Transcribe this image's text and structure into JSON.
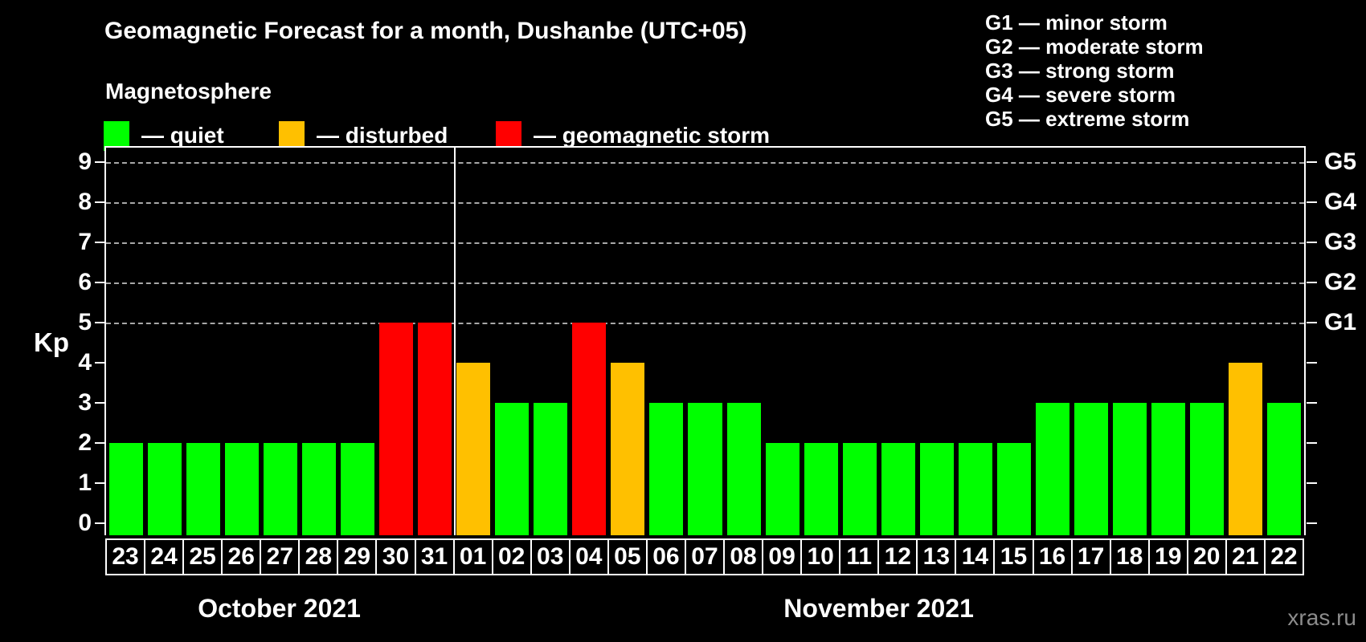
{
  "header": {
    "title": "Geomagnetic Forecast for a month, Dushanbe (UTC+05)",
    "subtitle": "Magnetosphere",
    "legend": [
      {
        "status": "quiet",
        "label": "— quiet"
      },
      {
        "status": "disturbed",
        "label": "— disturbed"
      },
      {
        "status": "storm",
        "label": "— geomagnetic storm"
      }
    ],
    "g_scale_legend": [
      "G1 — minor storm",
      "G2 — moderate storm",
      "G3 — strong storm",
      "G4 — severe storm",
      "G5 — extreme storm"
    ]
  },
  "colors": {
    "quiet": "#00ff00",
    "disturbed": "#ffc000",
    "storm": "#ff0000",
    "background": "#000000",
    "gridline": "#a8a8a8",
    "axis": "#ffffff",
    "watermark": "#8c8c8c"
  },
  "axes": {
    "left_label": "Kp",
    "left_ticks": [
      0,
      1,
      2,
      3,
      4,
      5,
      6,
      7,
      8,
      9
    ],
    "right_g_labels": [
      {
        "kp": 5,
        "label": "G1"
      },
      {
        "kp": 6,
        "label": "G2"
      },
      {
        "kp": 7,
        "label": "G3"
      },
      {
        "kp": 8,
        "label": "G4"
      },
      {
        "kp": 9,
        "label": "G5"
      }
    ],
    "gridlines_at_kp": [
      5,
      6,
      7,
      8,
      9
    ]
  },
  "months": [
    {
      "label": "October 2021",
      "day_count": 9
    },
    {
      "label": "November 2021",
      "day_count": 22
    }
  ],
  "watermark": "xras.ru",
  "chart_data": {
    "type": "bar",
    "title": "Geomagnetic Forecast for a month, Dushanbe (UTC+05)",
    "xlabel": "",
    "ylabel": "Kp",
    "ylim": [
      0,
      9.4
    ],
    "grid": "dashed horizontal lines at Kp 5,6,7,8,9 (G1–G5 levels)",
    "legend_position": "top",
    "categories": [
      "23",
      "24",
      "25",
      "26",
      "27",
      "28",
      "29",
      "30",
      "31",
      "01",
      "02",
      "03",
      "04",
      "05",
      "06",
      "07",
      "08",
      "09",
      "10",
      "11",
      "12",
      "13",
      "14",
      "15",
      "16",
      "17",
      "18",
      "19",
      "20",
      "21",
      "22"
    ],
    "values": [
      2,
      2,
      2,
      2,
      2,
      2,
      2,
      5,
      5,
      4,
      3,
      3,
      5,
      4,
      3,
      3,
      3,
      2,
      2,
      2,
      2,
      2,
      2,
      2,
      3,
      3,
      3,
      3,
      3,
      4,
      3
    ],
    "statuses": [
      "quiet",
      "quiet",
      "quiet",
      "quiet",
      "quiet",
      "quiet",
      "quiet",
      "storm",
      "storm",
      "disturbed",
      "quiet",
      "quiet",
      "storm",
      "disturbed",
      "quiet",
      "quiet",
      "quiet",
      "quiet",
      "quiet",
      "quiet",
      "quiet",
      "quiet",
      "quiet",
      "quiet",
      "quiet",
      "quiet",
      "quiet",
      "quiet",
      "quiet",
      "disturbed",
      "quiet"
    ],
    "month_boundary_after_index": 8
  }
}
